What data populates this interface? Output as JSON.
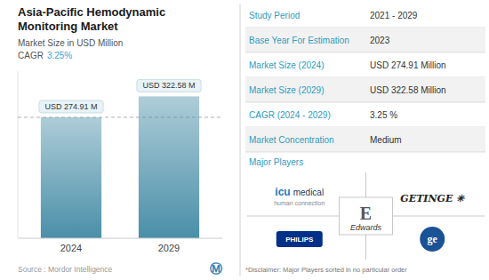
{
  "chart_data": {
    "type": "bar",
    "title": "Asia-Pacific Hemodynamic Monitoring Market",
    "subtitle": "Market Size in USD Million",
    "categories": [
      "2024",
      "2029"
    ],
    "values": [
      274.91,
      322.58
    ],
    "value_labels": [
      "USD 274.91 M",
      "USD 322.58 M"
    ],
    "data_labels": true,
    "color": "#4a8fa8",
    "ylim": [
      0,
      380
    ],
    "grid": false,
    "tick_labels": "x",
    "annotations": [
      "CAGR",
      "3.25%",
      "Source :  Mordor Intelligence",
      "Ⓜ",
      "Study Period",
      "2021 - 2029",
      "Base Year For Estimation",
      "2023",
      "Market Size (2024)",
      "USD 274.91 Million",
      "Market Size (2029)",
      "USD 322.58 Million",
      "CAGR (2024 - 2029)",
      "3.25 %",
      "Market Concentration",
      "Medium",
      "Major Players",
      "*Disclaimer: Major Players sorted in no particular order",
      "icu",
      "medical",
      "human connection",
      "GETINGE  ✳",
      "PHILIPS",
      "E",
      "Edwards",
      "ge"
    ]
  }
}
